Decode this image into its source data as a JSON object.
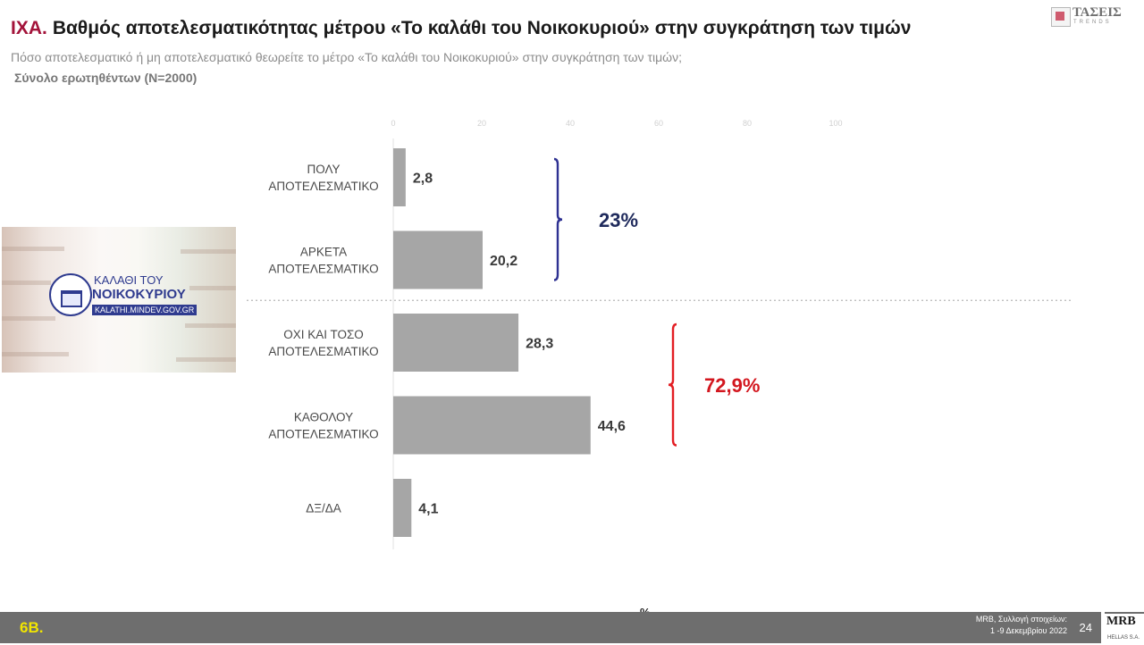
{
  "header": {
    "number": "IXA.",
    "title": "Βαθμός αποτελεσματικότητας μέτρου  «Το καλάθι του Νοικοκυριού» στην συγκράτηση των τιμών",
    "question": "Πόσο αποτελεσματικό ή μη αποτελεσματικό θεωρείτε το μέτρο «Το καλάθι του Νοικοκυριού» στην συγκράτηση των τιμών;",
    "base": "Σύνολο ερωτηθέντων (N=2000)"
  },
  "logo": {
    "brand": "ΤΑΣΕΙΣ",
    "sub": "TRENDS",
    "icon": "trends-logo-icon"
  },
  "photo": {
    "line1": "ΚΑΛΑΘΙ ΤΟΥ",
    "line2": "ΝΟΙΚΟΚΥΡΙΟΥ",
    "url": "KALATHI.MINDEV.GOV.GR",
    "icon": "shopping-basket-icon"
  },
  "chart_data": {
    "type": "bar",
    "orientation": "horizontal",
    "categories": [
      [
        "ΠΟΛΥ",
        "ΑΠΟΤΕΛΕΣΜΑΤΙΚΟ"
      ],
      [
        "ΑΡΚΕΤΑ",
        "ΑΠΟΤΕΛΕΣΜΑΤΙΚΟ"
      ],
      [
        "ΟΧΙ ΚΑΙ ΤΟΣΟ",
        "ΑΠΟΤΕΛΕΣΜΑΤΙΚΟ"
      ],
      [
        "ΚΑΘΟΛΟΥ",
        "ΑΠΟΤΕΛΕΣΜΑΤΙΚΟ"
      ],
      [
        "ΔΞ/ΔΑ"
      ]
    ],
    "values": [
      2.8,
      20.2,
      28.3,
      44.6,
      4.1
    ],
    "value_labels": [
      "2,8",
      "20,2",
      "28,3",
      "44,6",
      "4,1"
    ],
    "xlim": [
      0,
      100
    ],
    "xticks": [
      0,
      20,
      40,
      60,
      80,
      100
    ],
    "xlabel": "%",
    "bar_color": "#a6a6a6",
    "groups": [
      {
        "label": "23%",
        "from": 0,
        "to": 1,
        "color": "#2e3192"
      },
      {
        "label": "72,9%",
        "from": 2,
        "to": 3,
        "color": "#e31e24"
      }
    ],
    "divider_after": 1,
    "grid": false
  },
  "footer": {
    "code": "6B.",
    "source_line1": "MRB, Συλλογή στοιχείων:",
    "source_line2": "1 -9 Δεκεμβρίου 2022",
    "page": "24",
    "partner": "MRB",
    "partner_sub": "HELLAS S.A."
  }
}
